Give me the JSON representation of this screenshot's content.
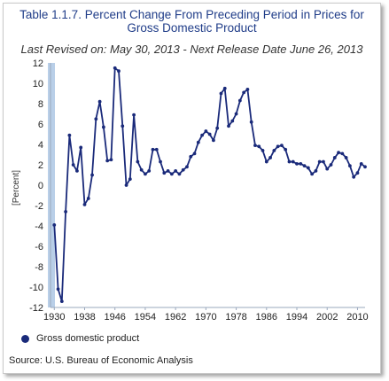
{
  "title": "Table 1.1.7. Percent Change From Preceding Period in Prices for Gross Domestic Product",
  "subtitle": "Last Revised on: May 30, 2013 - Next Release Date June 26, 2013",
  "source": "Source: U.S. Bureau of Economic Analysis",
  "chart_data": {
    "type": "line",
    "title": "Table 1.1.7. Percent Change From Preceding Period in Prices for Gross Domestic Product",
    "xlabel": "",
    "ylabel": "[Percent]",
    "xlim": [
      1929,
      2012
    ],
    "ylim": [
      -12,
      12
    ],
    "x_ticks": [
      "1930",
      "1938",
      "1946",
      "1954",
      "1962",
      "1970",
      "1978",
      "1986",
      "1994",
      "2002",
      "2010"
    ],
    "y_ticks": [
      "12",
      "10",
      "8",
      "6",
      "4",
      "2",
      "0",
      "-2",
      "-4",
      "-6",
      "-8",
      "-10",
      "-12"
    ],
    "grid": false,
    "legend_position": "bottom-left",
    "series": [
      {
        "name": "Gross domestic product",
        "color": "#1a2a7a",
        "x": [
          1930,
          1931,
          1932,
          1933,
          1934,
          1935,
          1936,
          1937,
          1938,
          1939,
          1940,
          1941,
          1942,
          1943,
          1944,
          1945,
          1946,
          1947,
          1948,
          1949,
          1950,
          1951,
          1952,
          1953,
          1954,
          1955,
          1956,
          1957,
          1958,
          1959,
          1960,
          1961,
          1962,
          1963,
          1964,
          1965,
          1966,
          1967,
          1968,
          1969,
          1970,
          1971,
          1972,
          1973,
          1974,
          1975,
          1976,
          1977,
          1978,
          1979,
          1980,
          1981,
          1982,
          1983,
          1984,
          1985,
          1986,
          1987,
          1988,
          1989,
          1990,
          1991,
          1992,
          1993,
          1994,
          1995,
          1996,
          1997,
          1998,
          1999,
          2000,
          2001,
          2002,
          2003,
          2004,
          2005,
          2006,
          2007,
          2008,
          2009,
          2010,
          2011,
          2012
        ],
        "values": [
          -3.9,
          -10.2,
          -11.4,
          -2.6,
          4.9,
          2.0,
          1.4,
          3.7,
          -1.9,
          -1.3,
          1.0,
          6.5,
          8.2,
          5.7,
          2.4,
          2.5,
          11.5,
          11.2,
          5.8,
          0.0,
          0.6,
          6.9,
          2.3,
          1.5,
          1.1,
          1.4,
          3.5,
          3.5,
          2.3,
          1.2,
          1.4,
          1.1,
          1.4,
          1.1,
          1.5,
          1.8,
          2.8,
          3.1,
          4.2,
          4.9,
          5.3,
          5.0,
          4.4,
          5.6,
          9.0,
          9.5,
          5.8,
          6.3,
          7.0,
          8.3,
          9.1,
          9.4,
          6.2,
          3.9,
          3.8,
          3.4,
          2.3,
          2.7,
          3.4,
          3.8,
          3.9,
          3.5,
          2.3,
          2.3,
          2.1,
          2.1,
          1.9,
          1.7,
          1.1,
          1.4,
          2.3,
          2.3,
          1.6,
          2.0,
          2.7,
          3.2,
          3.1,
          2.7,
          1.9,
          0.8,
          1.2,
          2.1,
          1.8
        ]
      }
    ]
  }
}
